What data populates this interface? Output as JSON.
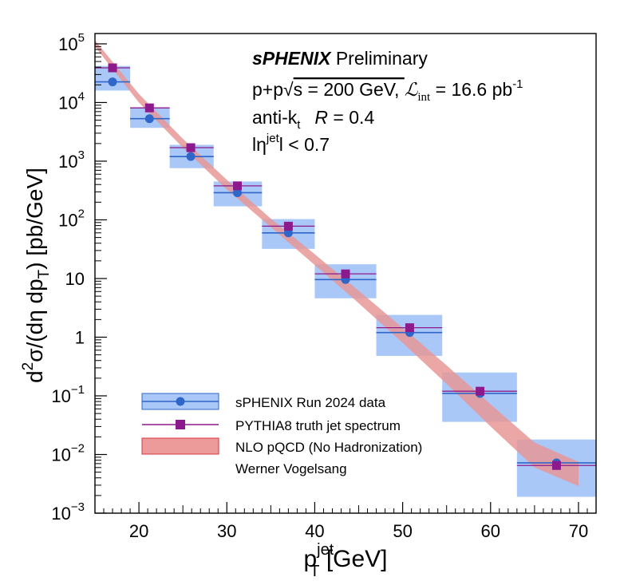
{
  "chart_data": {
    "type": "scatter",
    "y_scale": "log",
    "xlim": [
      15,
      72
    ],
    "ylim": [
      0.001,
      150000
    ],
    "grid": false,
    "legend_placement": "bottom-left",
    "x_ticks": [
      20,
      30,
      40,
      50,
      60,
      70
    ],
    "x_tick_labels": [
      "20",
      "30",
      "40",
      "50",
      "60",
      "70"
    ],
    "y_ticks": [
      {
        "value": 100000,
        "base": "10",
        "exp": "5"
      },
      {
        "value": 10000,
        "base": "10",
        "exp": "4"
      },
      {
        "value": 1000,
        "base": "10",
        "exp": "3"
      },
      {
        "value": 100,
        "base": "10",
        "exp": "2"
      },
      {
        "value": 10,
        "base": "10",
        "exp": ""
      },
      {
        "value": 1,
        "base": "1",
        "exp": ""
      },
      {
        "value": 0.1,
        "base": "10",
        "exp": "−1"
      },
      {
        "value": 0.01,
        "base": "10",
        "exp": "−2"
      },
      {
        "value": 0.001,
        "base": "10",
        "exp": "−3"
      }
    ],
    "xlabel": {
      "main": "p",
      "sup": "jet",
      "sub": "T",
      "unit": " [GeV]"
    },
    "ylabel": {
      "p1": "d",
      "sup1": "2",
      "p2": "σ/(dη dp",
      "sub": "T",
      "p3": ") [pb/GeV]"
    },
    "info": {
      "title_bold": "sPHENIX",
      "title_rest": " Preliminary",
      "line2a": "p+p",
      "line2_sqrt": "√",
      "line2b": "s = 200 GeV, ",
      "line2_lumi": "ℒ",
      "line2_lumi_sub": "int",
      "line2c": " = 16.6 pb",
      "line2_sup": "-1",
      "line3a": "anti-k",
      "line3_sub": "t",
      "line3_R": "R",
      "line3b": " = 0.4",
      "line4a": "l",
      "line4_eta": "η",
      "line4_sup": "jet",
      "line4b": "l < 0.7"
    },
    "series": [
      {
        "name": "sPHENIX Run 2024 data",
        "color": "#2f66c9",
        "box_color": "#aac8f7",
        "points": [
          {
            "x": 17.0,
            "xlo": 15.0,
            "xhi": 19.0,
            "y": 22500,
            "ylo": 16000,
            "yhi": 42000
          },
          {
            "x": 21.2,
            "xlo": 19.0,
            "xhi": 23.5,
            "y": 5300,
            "ylo": 3700,
            "yhi": 8200
          },
          {
            "x": 25.9,
            "xlo": 23.5,
            "xhi": 28.5,
            "y": 1200,
            "ylo": 760,
            "yhi": 1900
          },
          {
            "x": 31.2,
            "xlo": 28.5,
            "xhi": 34.0,
            "y": 290,
            "ylo": 170,
            "yhi": 450
          },
          {
            "x": 37.0,
            "xlo": 34.0,
            "xhi": 40.0,
            "y": 60,
            "ylo": 32,
            "yhi": 103
          },
          {
            "x": 43.5,
            "xlo": 40.0,
            "xhi": 47.0,
            "y": 9.6,
            "ylo": 4.6,
            "yhi": 17.5
          },
          {
            "x": 50.8,
            "xlo": 47.0,
            "xhi": 54.5,
            "y": 1.2,
            "ylo": 0.48,
            "yhi": 2.4
          },
          {
            "x": 58.8,
            "xlo": 54.5,
            "xhi": 63.0,
            "y": 0.11,
            "ylo": 0.036,
            "yhi": 0.25
          },
          {
            "x": 67.5,
            "xlo": 63.0,
            "xhi": 72.0,
            "y": 0.0072,
            "ylo": 0.0019,
            "yhi": 0.018
          }
        ]
      },
      {
        "name": "PYTHIA8 truth jet spectrum",
        "color": "#8c1a8c",
        "points": [
          {
            "x": 17.0,
            "xlo": 15.0,
            "xhi": 19.0,
            "y": 39000
          },
          {
            "x": 21.2,
            "xlo": 19.0,
            "xhi": 23.5,
            "y": 8100
          },
          {
            "x": 25.9,
            "xlo": 23.5,
            "xhi": 28.5,
            "y": 1700
          },
          {
            "x": 31.2,
            "xlo": 28.5,
            "xhi": 34.0,
            "y": 380
          },
          {
            "x": 37.0,
            "xlo": 34.0,
            "xhi": 40.0,
            "y": 78
          },
          {
            "x": 43.5,
            "xlo": 40.0,
            "xhi": 47.0,
            "y": 12
          },
          {
            "x": 50.8,
            "xlo": 47.0,
            "xhi": 54.5,
            "y": 1.45
          },
          {
            "x": 58.8,
            "xlo": 54.5,
            "xhi": 63.0,
            "y": 0.12
          },
          {
            "x": 67.5,
            "xlo": 63.0,
            "xhi": 72.0,
            "y": 0.0065
          }
        ]
      },
      {
        "name": "NLO pQCD (No Hadronization)",
        "extra_label": "Werner Vogelsang",
        "color": "#e07a7a",
        "band_fill": "#e89696",
        "band": [
          {
            "x": 15.0,
            "lo": 90000,
            "hi": 115000
          },
          {
            "x": 20.0,
            "lo": 10000,
            "hi": 14000
          },
          {
            "x": 25.0,
            "lo": 1700,
            "hi": 2400
          },
          {
            "x": 30.0,
            "lo": 330,
            "hi": 480
          },
          {
            "x": 35.0,
            "lo": 75,
            "hi": 105
          },
          {
            "x": 40.0,
            "lo": 17,
            "hi": 26
          },
          {
            "x": 45.0,
            "lo": 3.8,
            "hi": 6.2
          },
          {
            "x": 50.0,
            "lo": 0.8,
            "hi": 1.45
          },
          {
            "x": 55.0,
            "lo": 0.16,
            "hi": 0.33
          },
          {
            "x": 60.0,
            "lo": 0.03,
            "hi": 0.072
          },
          {
            "x": 65.0,
            "lo": 0.006,
            "hi": 0.016
          },
          {
            "x": 70.0,
            "lo": 0.0029,
            "hi": 0.0075
          }
        ]
      }
    ]
  }
}
